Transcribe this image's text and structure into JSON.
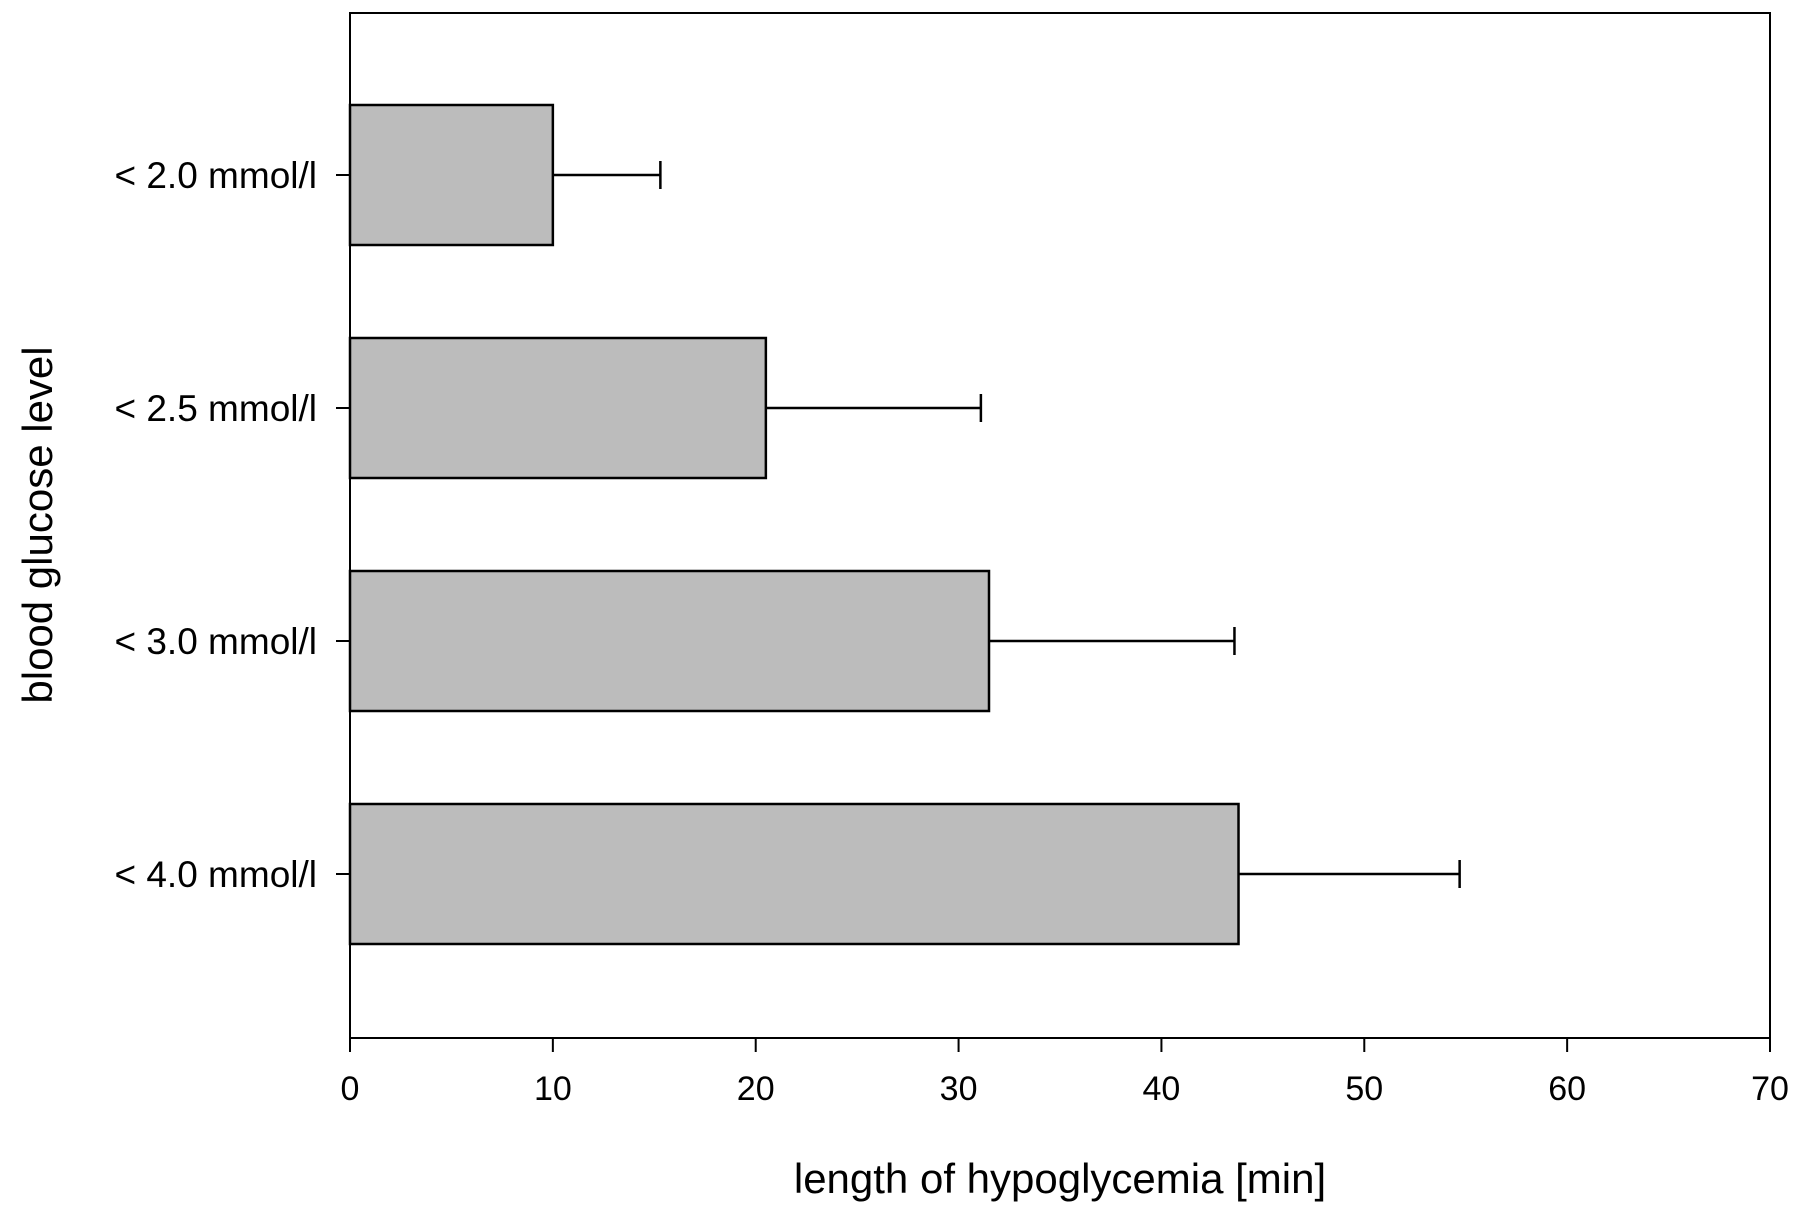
{
  "chart_data": {
    "type": "bar",
    "orientation": "horizontal",
    "categories": [
      "< 2.0 mmol/l",
      "< 2.5 mmol/l",
      "< 3.0 mmol/l",
      "< 4.0 mmol/l"
    ],
    "values": [
      10.0,
      20.5,
      31.5,
      43.8
    ],
    "error_upper": [
      15.3,
      31.1,
      43.6,
      54.7
    ],
    "xlabel": "length of hypoglycemia [min]",
    "ylabel": "blood glucose level",
    "xlim": [
      0,
      70
    ],
    "xticks": [
      0,
      10,
      20,
      30,
      40,
      50,
      60,
      70
    ],
    "grid": false,
    "legend": "none",
    "colors": {
      "bar_fill": "#bcbcbc",
      "bar_stroke": "#000000",
      "axis": "#000000"
    }
  }
}
